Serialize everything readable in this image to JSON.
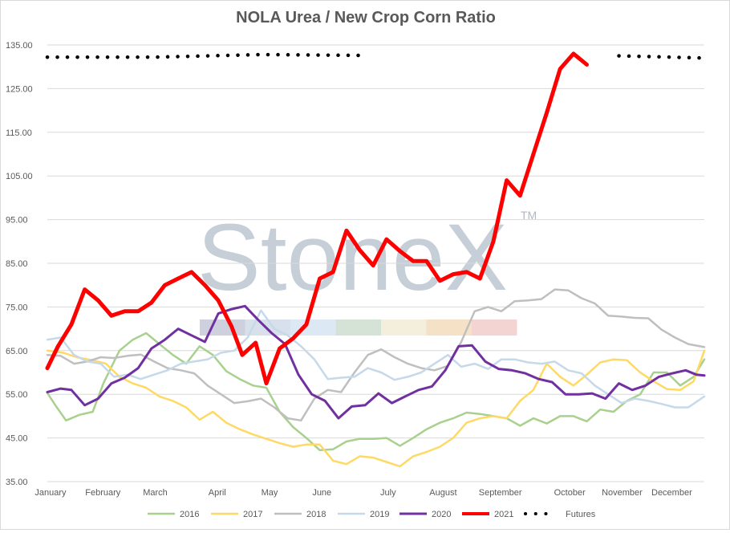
{
  "chart_data": {
    "type": "line",
    "title": "NOLA Urea / New Crop Corn Ratio",
    "watermark": "StoneX",
    "watermark_mark": "TM",
    "ylim": [
      35,
      135
    ],
    "yticks": [
      "35.00",
      "45.00",
      "55.00",
      "65.00",
      "75.00",
      "85.00",
      "95.00",
      "105.00",
      "115.00",
      "125.00",
      "135.00"
    ],
    "x_range": [
      0,
      12.3
    ],
    "xticks": [
      {
        "label": "January",
        "x": 0
      },
      {
        "label": "February",
        "x": 0.98
      },
      {
        "label": "March",
        "x": 1.96
      },
      {
        "label": "April",
        "x": 3.12
      },
      {
        "label": "May",
        "x": 4.1
      },
      {
        "label": "June",
        "x": 5.08
      },
      {
        "label": "July",
        "x": 6.32
      },
      {
        "label": "August",
        "x": 7.35
      },
      {
        "label": "September",
        "x": 8.42
      },
      {
        "label": "October",
        "x": 9.72
      },
      {
        "label": "November",
        "x": 10.7
      },
      {
        "label": "December",
        "x": 11.63
      }
    ],
    "grid": "horizontal",
    "legend_position": "bottom",
    "series": [
      {
        "name": "2016",
        "color": "#a9d18e",
        "width": 2.5,
        "points": [
          [
            0,
            55.3
          ],
          [
            0.15,
            52.5
          ],
          [
            0.35,
            49
          ],
          [
            0.6,
            50.3
          ],
          [
            0.85,
            51
          ],
          [
            1.05,
            57.5
          ],
          [
            1.35,
            65
          ],
          [
            1.6,
            67.5
          ],
          [
            1.85,
            69
          ],
          [
            2.1,
            66.5
          ],
          [
            2.35,
            64
          ],
          [
            2.6,
            62
          ],
          [
            2.85,
            66
          ],
          [
            3.1,
            64
          ],
          [
            3.35,
            60.3
          ],
          [
            3.6,
            58.5
          ],
          [
            3.85,
            57
          ],
          [
            4.1,
            56.5
          ],
          [
            4.35,
            51
          ],
          [
            4.6,
            47.5
          ],
          [
            4.85,
            45
          ],
          [
            5.1,
            42.2
          ],
          [
            5.35,
            42.4
          ],
          [
            5.6,
            44.2
          ],
          [
            5.85,
            44.8
          ],
          [
            6.1,
            44.8
          ],
          [
            6.35,
            45
          ],
          [
            6.6,
            43.2
          ],
          [
            6.85,
            45
          ],
          [
            7.1,
            47
          ],
          [
            7.35,
            48.5
          ],
          [
            7.6,
            49.5
          ],
          [
            7.85,
            50.8
          ],
          [
            8.1,
            50.5
          ],
          [
            8.35,
            50
          ],
          [
            8.6,
            49.5
          ],
          [
            8.85,
            47.8
          ],
          [
            9.1,
            49.5
          ],
          [
            9.35,
            48.3
          ],
          [
            9.6,
            50
          ],
          [
            9.85,
            50
          ],
          [
            10.1,
            48.8
          ],
          [
            10.35,
            51.5
          ],
          [
            10.6,
            51
          ],
          [
            10.85,
            53.5
          ],
          [
            11.1,
            55
          ],
          [
            11.35,
            60
          ],
          [
            11.6,
            60
          ],
          [
            11.85,
            57
          ],
          [
            12.1,
            59
          ],
          [
            12.3,
            63
          ]
        ]
      },
      {
        "name": "2017",
        "color": "#ffd966",
        "width": 2.5,
        "points": [
          [
            0,
            65
          ],
          [
            0.3,
            64.5
          ],
          [
            0.55,
            63.5
          ],
          [
            0.85,
            62.8
          ],
          [
            1.1,
            62
          ],
          [
            1.35,
            59
          ],
          [
            1.6,
            57.5
          ],
          [
            1.85,
            56.5
          ],
          [
            2.1,
            54.5
          ],
          [
            2.35,
            53.5
          ],
          [
            2.6,
            52
          ],
          [
            2.85,
            49.2
          ],
          [
            3.1,
            51
          ],
          [
            3.35,
            48.5
          ],
          [
            3.6,
            47
          ],
          [
            3.85,
            45.8
          ],
          [
            4.1,
            44.8
          ],
          [
            4.35,
            43.8
          ],
          [
            4.6,
            43
          ],
          [
            4.85,
            43.5
          ],
          [
            5.1,
            43.5
          ],
          [
            5.35,
            39.8
          ],
          [
            5.6,
            39
          ],
          [
            5.85,
            40.8
          ],
          [
            6.1,
            40.5
          ],
          [
            6.35,
            39.5
          ],
          [
            6.6,
            38.5
          ],
          [
            6.85,
            40.8
          ],
          [
            7.1,
            41.8
          ],
          [
            7.35,
            43
          ],
          [
            7.6,
            45
          ],
          [
            7.85,
            48.5
          ],
          [
            8.1,
            49.5
          ],
          [
            8.35,
            50
          ],
          [
            8.6,
            49.5
          ],
          [
            8.85,
            53.5
          ],
          [
            9.1,
            56
          ],
          [
            9.35,
            62
          ],
          [
            9.6,
            59
          ],
          [
            9.85,
            57
          ],
          [
            10.1,
            59.5
          ],
          [
            10.35,
            62.3
          ],
          [
            10.6,
            63
          ],
          [
            10.85,
            62.8
          ],
          [
            11.1,
            60
          ],
          [
            11.35,
            58
          ],
          [
            11.6,
            56.2
          ],
          [
            11.85,
            56
          ],
          [
            12.1,
            58
          ],
          [
            12.3,
            65
          ]
        ]
      },
      {
        "name": "2018",
        "color": "#bfbfbf",
        "width": 2.5,
        "points": [
          [
            0,
            64
          ],
          [
            0.25,
            63.8
          ],
          [
            0.5,
            62
          ],
          [
            0.75,
            62.5
          ],
          [
            1,
            63.5
          ],
          [
            1.25,
            63.3
          ],
          [
            1.5,
            63.8
          ],
          [
            1.75,
            64.1
          ],
          [
            2,
            62.5
          ],
          [
            2.25,
            61
          ],
          [
            2.5,
            60.5
          ],
          [
            2.75,
            59.8
          ],
          [
            3,
            57
          ],
          [
            3.25,
            55
          ],
          [
            3.5,
            53
          ],
          [
            3.75,
            53.4
          ],
          [
            4,
            54
          ],
          [
            4.25,
            52
          ],
          [
            4.5,
            49.5
          ],
          [
            4.75,
            49
          ],
          [
            5,
            54
          ],
          [
            5.25,
            56
          ],
          [
            5.5,
            55.5
          ],
          [
            5.75,
            60
          ],
          [
            6,
            64
          ],
          [
            6.25,
            65.3
          ],
          [
            6.5,
            63.5
          ],
          [
            6.75,
            62
          ],
          [
            7,
            61
          ],
          [
            7.25,
            60.5
          ],
          [
            7.5,
            61.5
          ],
          [
            7.75,
            67
          ],
          [
            8,
            74
          ],
          [
            8.25,
            75
          ],
          [
            8.5,
            74
          ],
          [
            8.75,
            76.3
          ],
          [
            9,
            76.5
          ],
          [
            9.25,
            76.8
          ],
          [
            9.5,
            79
          ],
          [
            9.75,
            78.8
          ],
          [
            10,
            77
          ],
          [
            10.25,
            75.8
          ],
          [
            10.5,
            73
          ],
          [
            10.75,
            72.8
          ],
          [
            11,
            72.5
          ],
          [
            11.25,
            72.4
          ],
          [
            11.5,
            69.8
          ],
          [
            11.75,
            68
          ],
          [
            12,
            66.5
          ],
          [
            12.3,
            65.8
          ]
        ]
      },
      {
        "name": "2019",
        "color": "#c5d9ea",
        "width": 2.5,
        "points": [
          [
            0,
            67.5
          ],
          [
            0.25,
            68
          ],
          [
            0.5,
            64
          ],
          [
            0.75,
            62.5
          ],
          [
            1,
            62
          ],
          [
            1.25,
            59
          ],
          [
            1.5,
            59.5
          ],
          [
            1.75,
            58.5
          ],
          [
            2,
            59.5
          ],
          [
            2.25,
            60.5
          ],
          [
            2.5,
            62
          ],
          [
            2.75,
            62.5
          ],
          [
            3,
            63
          ],
          [
            3.25,
            64.5
          ],
          [
            3.5,
            65
          ],
          [
            3.75,
            68
          ],
          [
            4,
            74.2
          ],
          [
            4.25,
            70
          ],
          [
            4.5,
            68.5
          ],
          [
            4.75,
            66
          ],
          [
            5,
            63
          ],
          [
            5.25,
            58.5
          ],
          [
            5.5,
            58.8
          ],
          [
            5.75,
            59
          ],
          [
            6,
            61
          ],
          [
            6.25,
            60
          ],
          [
            6.5,
            58.3
          ],
          [
            6.75,
            59
          ],
          [
            7,
            60
          ],
          [
            7.25,
            62
          ],
          [
            7.5,
            64
          ],
          [
            7.75,
            61.3
          ],
          [
            8,
            62
          ],
          [
            8.25,
            60.8
          ],
          [
            8.5,
            63
          ],
          [
            8.75,
            63
          ],
          [
            9,
            62.3
          ],
          [
            9.25,
            62
          ],
          [
            9.5,
            62.5
          ],
          [
            9.75,
            60.5
          ],
          [
            10,
            59.8
          ],
          [
            10.25,
            57
          ],
          [
            10.5,
            55
          ],
          [
            10.75,
            53
          ],
          [
            11,
            54
          ],
          [
            11.25,
            53.5
          ],
          [
            11.5,
            52.8
          ],
          [
            11.75,
            52
          ],
          [
            12,
            52
          ],
          [
            12.3,
            54.5
          ]
        ]
      },
      {
        "name": "2020",
        "color": "#7030a0",
        "width": 3,
        "points": [
          [
            0,
            55.5
          ],
          [
            0.25,
            56.3
          ],
          [
            0.45,
            56
          ],
          [
            0.7,
            52.5
          ],
          [
            0.95,
            54
          ],
          [
            1.2,
            57.5
          ],
          [
            1.45,
            58.8
          ],
          [
            1.7,
            61
          ],
          [
            1.95,
            65.5
          ],
          [
            2.2,
            67.5
          ],
          [
            2.45,
            70
          ],
          [
            2.7,
            68.5
          ],
          [
            2.95,
            67
          ],
          [
            3.2,
            73.5
          ],
          [
            3.45,
            74.5
          ],
          [
            3.7,
            75.2
          ],
          [
            3.95,
            72
          ],
          [
            4.2,
            69
          ],
          [
            4.45,
            66.5
          ],
          [
            4.7,
            59.5
          ],
          [
            4.95,
            55
          ],
          [
            5.2,
            53.5
          ],
          [
            5.45,
            49.5
          ],
          [
            5.7,
            52.2
          ],
          [
            5.95,
            52.5
          ],
          [
            6.2,
            55.2
          ],
          [
            6.45,
            53
          ],
          [
            6.7,
            54.5
          ],
          [
            6.95,
            56
          ],
          [
            7.2,
            56.8
          ],
          [
            7.45,
            60.5
          ],
          [
            7.7,
            66
          ],
          [
            7.95,
            66.2
          ],
          [
            8.2,
            62.5
          ],
          [
            8.45,
            60.8
          ],
          [
            8.7,
            60.5
          ],
          [
            8.95,
            59.8
          ],
          [
            9.2,
            58.5
          ],
          [
            9.45,
            57.8
          ],
          [
            9.7,
            55
          ],
          [
            9.95,
            55
          ],
          [
            10.2,
            55.2
          ],
          [
            10.45,
            54
          ],
          [
            10.7,
            57.5
          ],
          [
            10.95,
            56
          ],
          [
            11.2,
            57
          ],
          [
            11.45,
            59
          ],
          [
            11.7,
            59.8
          ],
          [
            11.95,
            60.5
          ],
          [
            12.15,
            59.5
          ],
          [
            12.3,
            59.3
          ]
        ]
      },
      {
        "name": "2021",
        "color": "#ff0000",
        "width": 5,
        "points": [
          [
            0,
            61
          ],
          [
            0.2,
            66
          ],
          [
            0.45,
            71
          ],
          [
            0.7,
            79
          ],
          [
            0.95,
            76.5
          ],
          [
            1.2,
            73
          ],
          [
            1.45,
            74
          ],
          [
            1.7,
            74
          ],
          [
            1.95,
            76
          ],
          [
            2.2,
            80
          ],
          [
            2.45,
            81.5
          ],
          [
            2.7,
            83
          ],
          [
            2.95,
            80
          ],
          [
            3.2,
            76.5
          ],
          [
            3.45,
            70.5
          ],
          [
            3.65,
            64
          ],
          [
            3.9,
            66.8
          ],
          [
            4.1,
            57.5
          ],
          [
            4.35,
            65.5
          ],
          [
            4.6,
            67.8
          ],
          [
            4.85,
            71
          ],
          [
            5.1,
            81.5
          ],
          [
            5.35,
            83
          ],
          [
            5.6,
            92.5
          ],
          [
            5.85,
            88
          ],
          [
            6.1,
            84.5
          ],
          [
            6.35,
            90.5
          ],
          [
            6.6,
            87.8
          ],
          [
            6.85,
            85.5
          ],
          [
            7.1,
            85.5
          ],
          [
            7.35,
            81
          ],
          [
            7.6,
            82.5
          ],
          [
            7.85,
            83
          ],
          [
            8.1,
            81.5
          ],
          [
            8.35,
            90
          ],
          [
            8.6,
            104
          ],
          [
            8.85,
            100.5
          ],
          [
            9.1,
            110
          ],
          [
            9.35,
            119.5
          ],
          [
            9.6,
            129.5
          ],
          [
            9.85,
            133
          ],
          [
            10.1,
            130.5
          ]
        ]
      }
    ],
    "futures": {
      "name": "Futures",
      "color": "#000000",
      "segments": [
        [
          [
            0,
            132.2
          ],
          [
            2,
            132.2
          ],
          [
            4,
            132.8
          ],
          [
            6,
            132.6
          ]
        ],
        [
          [
            10.7,
            132.5
          ],
          [
            11.4,
            132.3
          ],
          [
            12.3,
            132
          ]
        ]
      ]
    }
  }
}
